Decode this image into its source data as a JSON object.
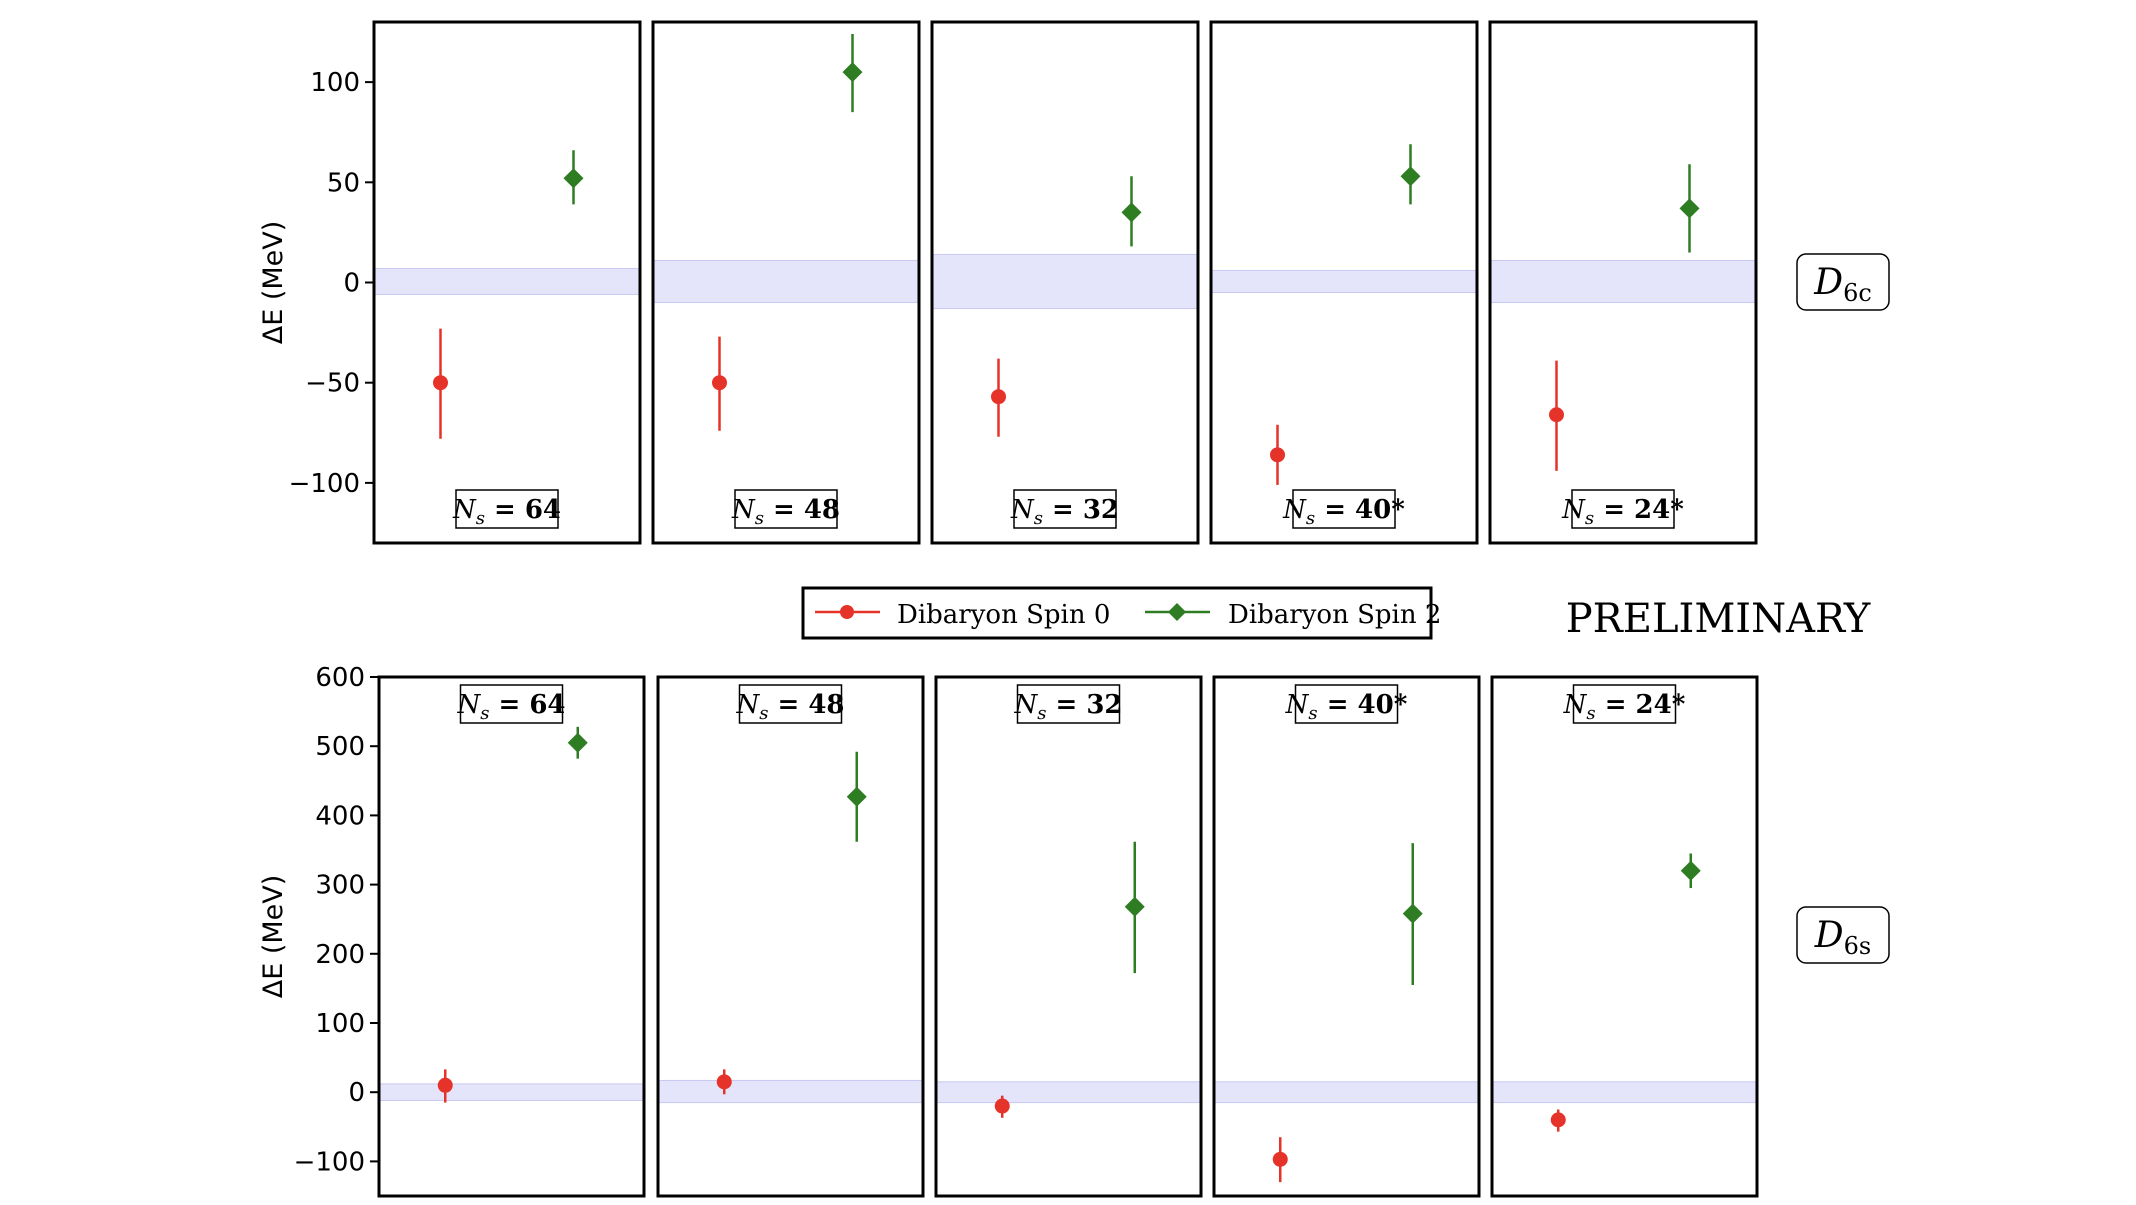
{
  "chart_data": [
    {
      "type": "scatter",
      "id": "D6c",
      "ylabel": "ΔE (MeV)",
      "ylim": [
        -130,
        130
      ],
      "yticks": [
        -100,
        -50,
        0,
        50,
        100
      ],
      "row_label": "D6c",
      "panels": [
        {
          "label": "N_s = 64",
          "band": [
            -6,
            7
          ],
          "spin0": {
            "y": -50,
            "lo": -78,
            "hi": -23
          },
          "spin2": {
            "y": 52,
            "lo": 39,
            "hi": 66
          }
        },
        {
          "label": "N_s = 48",
          "band": [
            -10,
            11
          ],
          "spin0": {
            "y": -50,
            "lo": -74,
            "hi": -27
          },
          "spin2": {
            "y": 105,
            "lo": 85,
            "hi": 124
          }
        },
        {
          "label": "N_s = 32",
          "band": [
            -13,
            14
          ],
          "spin0": {
            "y": -57,
            "lo": -77,
            "hi": -38
          },
          "spin2": {
            "y": 35,
            "lo": 18,
            "hi": 53
          }
        },
        {
          "label": "N_s = 40*",
          "band": [
            -5,
            6
          ],
          "spin0": {
            "y": -86,
            "lo": -101,
            "hi": -71
          },
          "spin2": {
            "y": 53,
            "lo": 39,
            "hi": 69
          }
        },
        {
          "label": "N_s = 24*",
          "band": [
            -10,
            11
          ],
          "spin0": {
            "y": -66,
            "lo": -94,
            "hi": -39
          },
          "spin2": {
            "y": 37,
            "lo": 15,
            "hi": 59
          }
        }
      ]
    },
    {
      "type": "scatter",
      "id": "D6s",
      "ylabel": "ΔE (MeV)",
      "ylim": [
        -150,
        600
      ],
      "yticks": [
        -100,
        0,
        100,
        200,
        300,
        400,
        500,
        600
      ],
      "row_label": "D6s",
      "panels": [
        {
          "label": "N_s = 64",
          "band": [
            -12,
            12
          ],
          "spin0": {
            "y": 10,
            "lo": -15,
            "hi": 33
          },
          "spin2": {
            "y": 505,
            "lo": 482,
            "hi": 528
          }
        },
        {
          "label": "N_s = 48",
          "band": [
            -15,
            17
          ],
          "spin0": {
            "y": 15,
            "lo": -3,
            "hi": 33
          },
          "spin2": {
            "y": 427,
            "lo": 362,
            "hi": 492
          }
        },
        {
          "label": "N_s = 32",
          "band": [
            -15,
            15
          ],
          "spin0": {
            "y": -20,
            "lo": -37,
            "hi": -5
          },
          "spin2": {
            "y": 268,
            "lo": 172,
            "hi": 362
          }
        },
        {
          "label": "N_s = 40*",
          "band": [
            -15,
            15
          ],
          "spin0": {
            "y": -97,
            "lo": -130,
            "hi": -65
          },
          "spin2": {
            "y": 258,
            "lo": 155,
            "hi": 360
          }
        },
        {
          "label": "N_s = 24*",
          "band": [
            -15,
            15
          ],
          "spin0": {
            "y": -40,
            "lo": -57,
            "hi": -25
          },
          "spin2": {
            "y": 320,
            "lo": 295,
            "hi": 345
          }
        }
      ]
    }
  ],
  "legend": {
    "placement": "between rows, center",
    "entries": [
      {
        "name": "Dibaryon Spin 0",
        "color": "#e63329",
        "marker": "circle"
      },
      {
        "name": "Dibaryon Spin 2",
        "color": "#2e7d22",
        "marker": "diamond"
      }
    ]
  },
  "watermark": "PRELIMINARY",
  "colors": {
    "spin0": "#e63329",
    "spin2": "#2e7d22",
    "band": "#e4e4fb",
    "band_edge": "#c9c9f2",
    "watermark": "#bcbcbc"
  }
}
